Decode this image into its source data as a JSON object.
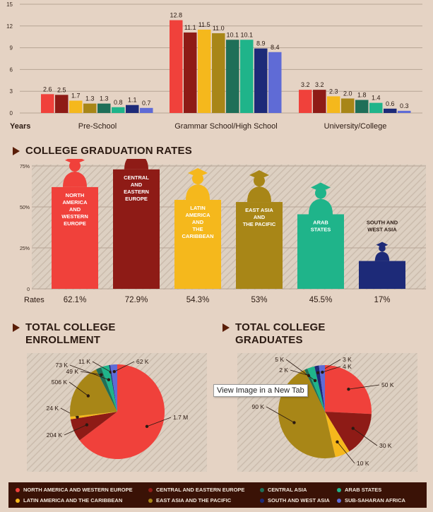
{
  "colors": {
    "north_america": "#f0413b",
    "central_europe": "#8e1b16",
    "latin_america": "#f5b81c",
    "east_asia": "#a88617",
    "central_asia": "#1f6f58",
    "arab_states": "#1fb48a",
    "south_west_asia": "#1d2a78",
    "sub_saharan": "#5f6bd6",
    "brown_text": "#2b1a12"
  },
  "chart_data": [
    {
      "type": "bar",
      "ylim": [
        0,
        15
      ],
      "yticks": [
        "0",
        "3",
        "6",
        "9",
        "12",
        "15"
      ],
      "xlabel": "Years",
      "categories": [
        "Pre-School",
        "Grammar School/High School",
        "University/College"
      ],
      "series": [
        {
          "name": "North America and Western Europe",
          "values": [
            2.6,
            12.8,
            3.2
          ]
        },
        {
          "name": "Central and Eastern Europe",
          "values": [
            2.5,
            11.1,
            3.2
          ]
        },
        {
          "name": "Latin America and the Caribbean",
          "values": [
            1.7,
            11.5,
            2.3
          ]
        },
        {
          "name": "East Asia and the Pacific",
          "values": [
            1.3,
            11.0,
            2.0
          ]
        },
        {
          "name": "Central Asia",
          "values": [
            1.3,
            10.1,
            1.8
          ]
        },
        {
          "name": "Arab States",
          "values": [
            0.8,
            10.1,
            1.4
          ]
        },
        {
          "name": "South and West Asia",
          "values": [
            1.1,
            8.9,
            0.6
          ]
        },
        {
          "name": "Sub-Saharan Africa",
          "values": [
            0.7,
            8.4,
            0.3
          ]
        }
      ]
    },
    {
      "type": "bar",
      "title": "COLLEGE GRADUATION RATES",
      "ylim": [
        0,
        75
      ],
      "yticks": [
        "0",
        "25%",
        "50%",
        "75%"
      ],
      "row_label": "Rates",
      "categories": [
        "NORTH AMERICA AND WESTERN EUROPE",
        "CENTRAL AND EASTERN EUROPE",
        "LATIN AMERICA AND THE CARIBBEAN",
        "EAST ASIA AND THE PACIFIC",
        "ARAB STATES",
        "SOUTH AND WEST ASIA"
      ],
      "category_lines": [
        [
          "NORTH",
          "AMERICA",
          "AND",
          "WESTERN",
          "EUROPE"
        ],
        [
          "CENTRAL",
          "AND",
          "EASTERN",
          "EUROPE"
        ],
        [
          "LATIN",
          "AMERICA",
          "AND",
          "THE",
          "CARIBBEAN"
        ],
        [
          "EAST ASIA",
          "AND",
          "THE PACIFIC"
        ],
        [
          "ARAB",
          "STATES"
        ],
        [
          "SOUTH AND",
          "WEST ASIA"
        ]
      ],
      "values": [
        62.1,
        72.9,
        54.3,
        53,
        45.5,
        17
      ],
      "value_labels": [
        "62.1%",
        "72.9%",
        "54.3%",
        "53%",
        "45.5%",
        "17%"
      ]
    },
    {
      "type": "pie",
      "title": "TOTAL COLLEGE ENROLLMENT",
      "slices": [
        {
          "label": "1.7 M",
          "value": 1700
        },
        {
          "label": "204 K",
          "value": 204
        },
        {
          "label": "24 K",
          "value": 24
        },
        {
          "label": "506 K",
          "value": 506
        },
        {
          "label": "49 K",
          "value": 49
        },
        {
          "label": "73 K",
          "value": 73
        },
        {
          "label": "11 K",
          "value": 11
        },
        {
          "label": "62 K",
          "value": 62
        }
      ]
    },
    {
      "type": "pie",
      "title": "TOTAL COLLEGE GRADUATES",
      "slices": [
        {
          "label": "50 K",
          "value": 50
        },
        {
          "label": "30 K",
          "value": 30
        },
        {
          "label": "10 K",
          "value": 10
        },
        {
          "label": "90 K",
          "value": 90
        },
        {
          "label": "2 K",
          "value": 2
        },
        {
          "label": "5 K",
          "value": 5
        },
        {
          "label": "3 K",
          "value": 3
        },
        {
          "label": "4 K",
          "value": 4
        }
      ]
    }
  ],
  "headings": {
    "rates": "COLLEGE GRADUATION RATES",
    "enrollment": [
      "TOTAL COLLEGE",
      "ENROLLMENT"
    ],
    "graduates": [
      "TOTAL COLLEGE",
      "GRADUATES"
    ]
  },
  "legend": [
    "NORTH AMERICA AND WESTERN EUROPE",
    "CENTRAL AND EASTERN EUROPE",
    "CENTRAL ASIA",
    "ARAB STATES",
    "LATIN AMERICA AND THE CARIBBEAN",
    "EAST ASIA AND THE PACIFIC",
    "SOUTH AND WEST ASIA",
    "SUB-SAHARAN AFRICA"
  ],
  "tooltip": "View Image in a New Tab"
}
